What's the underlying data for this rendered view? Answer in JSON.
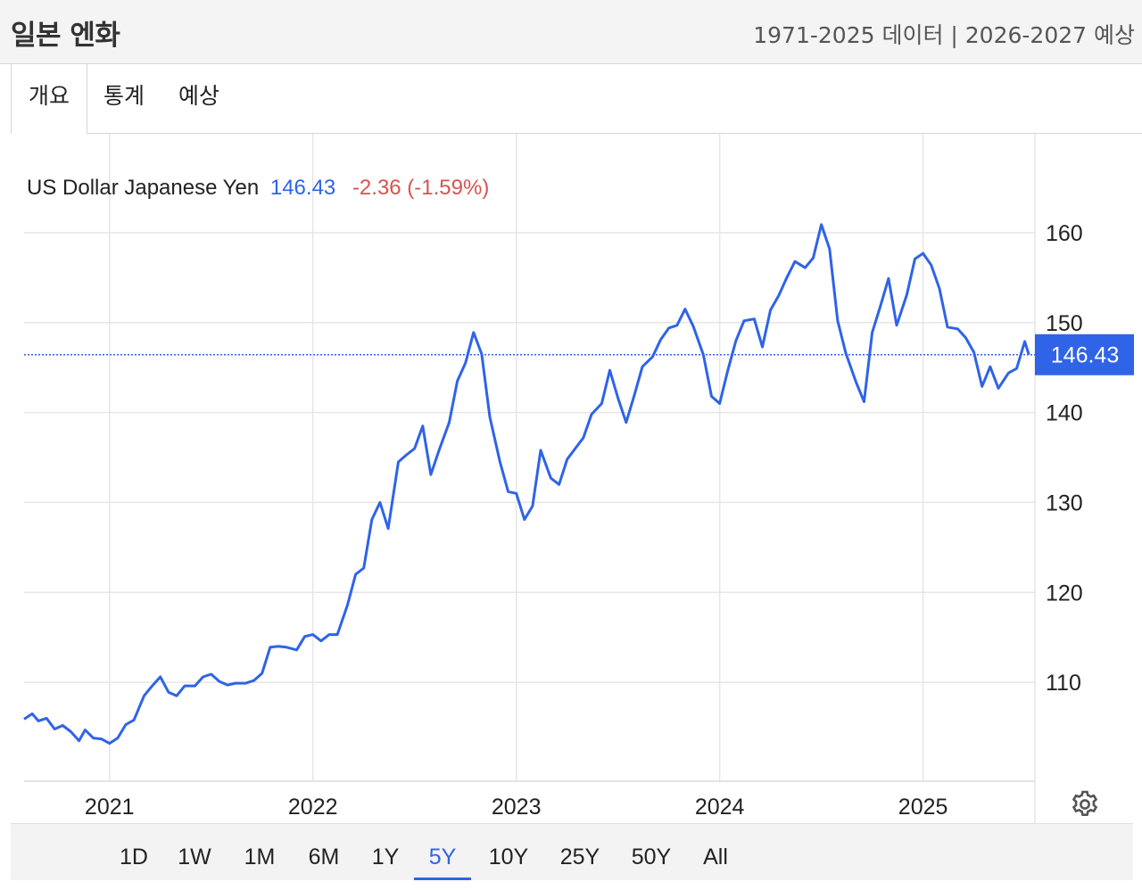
{
  "header": {
    "title": "일본 엔화",
    "range_info": "1971-2025 데이터 | 2026-2027 예상"
  },
  "tabs": [
    {
      "label": "개요",
      "active": true
    },
    {
      "label": "통계",
      "active": false
    },
    {
      "label": "예상",
      "active": false
    }
  ],
  "legend": {
    "name": "US Dollar Japanese Yen",
    "last": "146.43",
    "change": "-2.36 (-1.59%)"
  },
  "range_buttons": [
    {
      "label": "1D",
      "active": false
    },
    {
      "label": "1W",
      "active": false
    },
    {
      "label": "1M",
      "active": false
    },
    {
      "label": "6M",
      "active": false
    },
    {
      "label": "1Y",
      "active": false
    },
    {
      "label": "5Y",
      "active": true
    },
    {
      "label": "10Y",
      "active": false
    },
    {
      "label": "25Y",
      "active": false
    },
    {
      "label": "50Y",
      "active": false
    },
    {
      "label": "All",
      "active": false
    }
  ],
  "colors": {
    "line": "#2f63e8",
    "change_negative": "#d9534f",
    "grid": "#e6e6e6"
  },
  "chart_data": {
    "type": "line",
    "title": "US Dollar Japanese Yen",
    "series_name": "USD/JPY",
    "last_value": 146.43,
    "last_label": "146.43",
    "xlim": [
      2020.58,
      2025.55
    ],
    "ylim": [
      99,
      171
    ],
    "x_ticks": [
      2021,
      2022,
      2023,
      2024,
      2025
    ],
    "x_tick_labels": [
      "2021",
      "2022",
      "2023",
      "2024",
      "2025"
    ],
    "y_ticks": [
      110,
      120,
      130,
      140,
      150,
      160
    ],
    "y_tick_labels": [
      "110",
      "120",
      "130",
      "140",
      "150",
      "160"
    ],
    "points": [
      [
        2020.58,
        105.9
      ],
      [
        2020.62,
        106.5
      ],
      [
        2020.65,
        105.7
      ],
      [
        2020.69,
        106.0
      ],
      [
        2020.73,
        104.8
      ],
      [
        2020.77,
        105.2
      ],
      [
        2020.81,
        104.5
      ],
      [
        2020.85,
        103.5
      ],
      [
        2020.88,
        104.7
      ],
      [
        2020.92,
        103.8
      ],
      [
        2020.96,
        103.7
      ],
      [
        2021.0,
        103.2
      ],
      [
        2021.04,
        103.8
      ],
      [
        2021.08,
        105.3
      ],
      [
        2021.12,
        105.8
      ],
      [
        2021.17,
        108.5
      ],
      [
        2021.21,
        109.6
      ],
      [
        2021.25,
        110.6
      ],
      [
        2021.29,
        108.9
      ],
      [
        2021.33,
        108.5
      ],
      [
        2021.37,
        109.6
      ],
      [
        2021.42,
        109.6
      ],
      [
        2021.46,
        110.6
      ],
      [
        2021.5,
        110.9
      ],
      [
        2021.54,
        110.1
      ],
      [
        2021.58,
        109.7
      ],
      [
        2021.62,
        109.9
      ],
      [
        2021.67,
        109.9
      ],
      [
        2021.71,
        110.2
      ],
      [
        2021.75,
        111.0
      ],
      [
        2021.79,
        113.9
      ],
      [
        2021.83,
        114.0
      ],
      [
        2021.87,
        113.9
      ],
      [
        2021.92,
        113.6
      ],
      [
        2021.96,
        115.1
      ],
      [
        2022.0,
        115.3
      ],
      [
        2022.04,
        114.6
      ],
      [
        2022.08,
        115.3
      ],
      [
        2022.12,
        115.3
      ],
      [
        2022.17,
        118.6
      ],
      [
        2022.21,
        122.0
      ],
      [
        2022.25,
        122.7
      ],
      [
        2022.29,
        128.1
      ],
      [
        2022.33,
        130.0
      ],
      [
        2022.37,
        127.1
      ],
      [
        2022.42,
        134.5
      ],
      [
        2022.46,
        135.3
      ],
      [
        2022.5,
        136.0
      ],
      [
        2022.54,
        138.5
      ],
      [
        2022.58,
        133.1
      ],
      [
        2022.62,
        135.8
      ],
      [
        2022.67,
        138.9
      ],
      [
        2022.71,
        143.5
      ],
      [
        2022.75,
        145.5
      ],
      [
        2022.79,
        148.9
      ],
      [
        2022.83,
        146.5
      ],
      [
        2022.87,
        139.5
      ],
      [
        2022.92,
        134.5
      ],
      [
        2022.96,
        131.2
      ],
      [
        2023.0,
        131.0
      ],
      [
        2023.04,
        128.1
      ],
      [
        2023.08,
        129.6
      ],
      [
        2023.12,
        135.8
      ],
      [
        2023.17,
        132.7
      ],
      [
        2023.21,
        132.0
      ],
      [
        2023.25,
        134.8
      ],
      [
        2023.29,
        136.0
      ],
      [
        2023.33,
        137.2
      ],
      [
        2023.37,
        139.8
      ],
      [
        2023.42,
        141.0
      ],
      [
        2023.46,
        144.7
      ],
      [
        2023.5,
        141.6
      ],
      [
        2023.54,
        138.9
      ],
      [
        2023.58,
        141.9
      ],
      [
        2023.62,
        145.1
      ],
      [
        2023.67,
        146.2
      ],
      [
        2023.71,
        148.1
      ],
      [
        2023.75,
        149.4
      ],
      [
        2023.79,
        149.7
      ],
      [
        2023.83,
        151.5
      ],
      [
        2023.87,
        149.6
      ],
      [
        2023.92,
        146.4
      ],
      [
        2023.96,
        141.8
      ],
      [
        2024.0,
        141.0
      ],
      [
        2024.04,
        144.7
      ],
      [
        2024.08,
        148.0
      ],
      [
        2024.12,
        150.2
      ],
      [
        2024.17,
        150.4
      ],
      [
        2024.21,
        147.3
      ],
      [
        2024.25,
        151.4
      ],
      [
        2024.29,
        153.0
      ],
      [
        2024.33,
        155.0
      ],
      [
        2024.37,
        156.8
      ],
      [
        2024.42,
        156.1
      ],
      [
        2024.46,
        157.2
      ],
      [
        2024.5,
        160.9
      ],
      [
        2024.54,
        158.2
      ],
      [
        2024.58,
        150.2
      ],
      [
        2024.62,
        146.6
      ],
      [
        2024.67,
        143.4
      ],
      [
        2024.71,
        141.2
      ],
      [
        2024.75,
        148.9
      ],
      [
        2024.79,
        151.8
      ],
      [
        2024.83,
        154.9
      ],
      [
        2024.87,
        149.7
      ],
      [
        2024.92,
        153.1
      ],
      [
        2024.96,
        157.1
      ],
      [
        2025.0,
        157.7
      ],
      [
        2025.04,
        156.4
      ],
      [
        2025.08,
        153.8
      ],
      [
        2025.12,
        149.5
      ],
      [
        2025.17,
        149.3
      ],
      [
        2025.21,
        148.3
      ],
      [
        2025.25,
        146.7
      ],
      [
        2025.29,
        142.9
      ],
      [
        2025.33,
        145.1
      ],
      [
        2025.37,
        142.7
      ],
      [
        2025.42,
        144.4
      ],
      [
        2025.46,
        144.9
      ],
      [
        2025.5,
        147.9
      ],
      [
        2025.52,
        146.43
      ]
    ]
  }
}
